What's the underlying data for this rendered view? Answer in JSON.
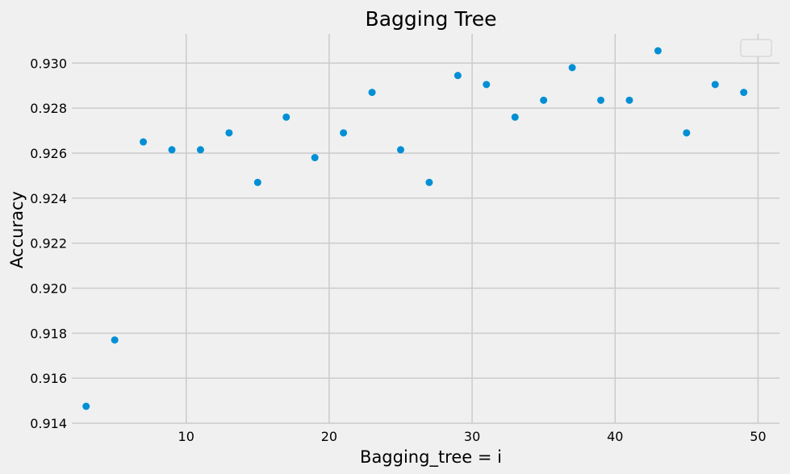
{
  "chart_data": {
    "type": "scatter",
    "title": "Bagging Tree",
    "xlabel": "Bagging_tree = i",
    "ylabel": "Accuracy",
    "xlim": [
      2,
      51.5
    ],
    "ylim": [
      0.914,
      0.9313
    ],
    "x_ticks": [
      10,
      20,
      30,
      40,
      50
    ],
    "y_ticks": [
      0.914,
      0.916,
      0.918,
      0.92,
      0.922,
      0.924,
      0.926,
      0.928,
      0.93
    ],
    "x_tick_labels": [
      "10",
      "20",
      "30",
      "40",
      "50"
    ],
    "y_tick_labels": [
      "0.914",
      "0.916",
      "0.918",
      "0.920",
      "0.922",
      "0.924",
      "0.926",
      "0.928",
      "0.930"
    ],
    "grid": true,
    "legend": "top-right (empty)",
    "series": [
      {
        "color": "#008fd5",
        "x": [
          3,
          5,
          7,
          9,
          11,
          13,
          15,
          17,
          19,
          21,
          23,
          25,
          27,
          29,
          31,
          33,
          35,
          37,
          39,
          41,
          43,
          45,
          47,
          49
        ],
        "y": [
          0.91475,
          0.9177,
          0.9265,
          0.92615,
          0.92615,
          0.9269,
          0.9247,
          0.9276,
          0.9258,
          0.9269,
          0.9287,
          0.92615,
          0.9247,
          0.92945,
          0.92905,
          0.9276,
          0.92835,
          0.9298,
          0.92835,
          0.92835,
          0.93055,
          0.9269,
          0.92905,
          0.9287
        ]
      }
    ]
  }
}
